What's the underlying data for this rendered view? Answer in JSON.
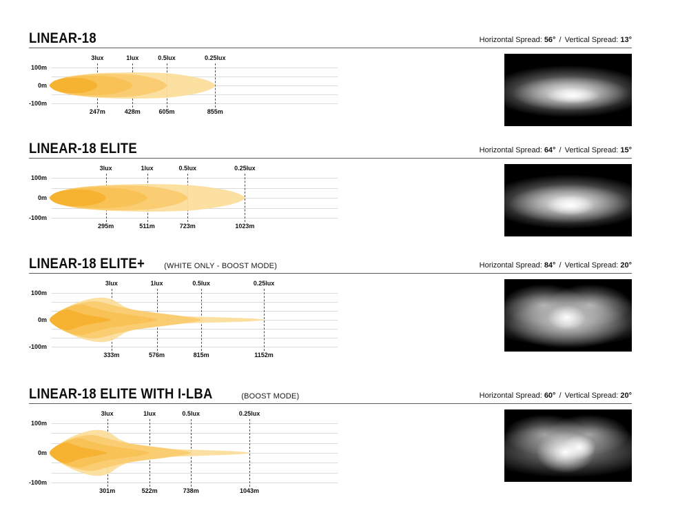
{
  "beam_colors": {
    "lux3": "#F6B231",
    "lux1": "#F8C256",
    "lux05": "#FACD72",
    "lux025": "#FBDE9A"
  },
  "photo_background": "#000000",
  "chart_data": [
    {
      "type": "area",
      "title": "LINEAR-18",
      "subtitle": "",
      "spread": {
        "h_label": "Horizontal Spread:",
        "h_value": "56°",
        "separator": "/",
        "v_label": "Vertical Spread:",
        "v_value": "13°"
      },
      "horizontal_spread_deg": 56,
      "vertical_spread_deg": 13,
      "y_ticks": [
        "100m",
        "0m",
        "-100m"
      ],
      "ylim_m": [
        -100,
        100
      ],
      "grid": true,
      "contours": [
        {
          "lux": 3,
          "lux_label": "3lux",
          "distance_m": 247,
          "distance_label": "247m"
        },
        {
          "lux": 1,
          "lux_label": "1lux",
          "distance_m": 428,
          "distance_label": "428m"
        },
        {
          "lux": 0.5,
          "lux_label": "0.5lux",
          "distance_m": 605,
          "distance_label": "605m"
        },
        {
          "lux": 0.25,
          "lux_label": "0.25lux",
          "distance_m": 855,
          "distance_label": "855m"
        }
      ],
      "photo": "elliptical-white-beam-glow-on-black"
    },
    {
      "type": "area",
      "title": "LINEAR-18 ELITE",
      "subtitle": "",
      "spread": {
        "h_label": "Horizontal Spread:",
        "h_value": "64°",
        "separator": "/",
        "v_label": "Vertical Spread:",
        "v_value": "15°"
      },
      "horizontal_spread_deg": 64,
      "vertical_spread_deg": 15,
      "y_ticks": [
        "100m",
        "0m",
        "-100m"
      ],
      "ylim_m": [
        -100,
        100
      ],
      "grid": true,
      "contours": [
        {
          "lux": 3,
          "lux_label": "3lux",
          "distance_m": 295,
          "distance_label": "295m"
        },
        {
          "lux": 1,
          "lux_label": "1lux",
          "distance_m": 511,
          "distance_label": "511m"
        },
        {
          "lux": 0.5,
          "lux_label": "0.5lux",
          "distance_m": 723,
          "distance_label": "723m"
        },
        {
          "lux": 0.25,
          "lux_label": "0.25lux",
          "distance_m": 1023,
          "distance_label": "1023m"
        }
      ],
      "photo": "elliptical-white-beam-glow-on-black"
    },
    {
      "type": "area",
      "title": "LINEAR-18 ELITE+",
      "subtitle": " (WHITE ONLY - BOOST MODE)",
      "spread": {
        "h_label": "Horizontal Spread:",
        "h_value": "84°",
        "separator": "/",
        "v_label": "Vertical Spread:",
        "v_value": "20°"
      },
      "horizontal_spread_deg": 84,
      "vertical_spread_deg": 20,
      "y_ticks": [
        "100m",
        "0m",
        "-100m"
      ],
      "ylim_m": [
        -150,
        150
      ],
      "grid": true,
      "contours": [
        {
          "lux": 3,
          "lux_label": "3lux",
          "distance_m": 333,
          "distance_label": "333m"
        },
        {
          "lux": 1,
          "lux_label": "1lux",
          "distance_m": 576,
          "distance_label": "576m"
        },
        {
          "lux": 0.5,
          "lux_label": "0.5lux",
          "distance_m": 815,
          "distance_label": "815m"
        },
        {
          "lux": 0.25,
          "lux_label": "0.25lux",
          "distance_m": 1152,
          "distance_label": "1152m"
        }
      ],
      "photo": "two-lobed-wide-beam-glow-on-black"
    },
    {
      "type": "area",
      "title": "LINEAR-18 ELITE WITH I-LBA",
      "subtitle": " (BOOST MODE)",
      "spread": {
        "h_label": "Horizontal Spread:",
        "h_value": "60°",
        "separator": "/",
        "v_label": "Vertical Spread:",
        "v_value": "20°"
      },
      "horizontal_spread_deg": 60,
      "vertical_spread_deg": 20,
      "y_ticks": [
        "100m",
        "0m",
        "-100m"
      ],
      "ylim_m": [
        -150,
        150
      ],
      "grid": true,
      "contours": [
        {
          "lux": 3,
          "lux_label": "3lux",
          "distance_m": 301,
          "distance_label": "301m"
        },
        {
          "lux": 1,
          "lux_label": "1lux",
          "distance_m": 522,
          "distance_label": "522m"
        },
        {
          "lux": 0.5,
          "lux_label": "0.5lux",
          "distance_m": 738,
          "distance_label": "738m"
        },
        {
          "lux": 0.25,
          "lux_label": "0.25lux",
          "distance_m": 1043,
          "distance_label": "1043m"
        }
      ],
      "photo": "two-lobed-bright-beam-glow-on-black"
    }
  ]
}
